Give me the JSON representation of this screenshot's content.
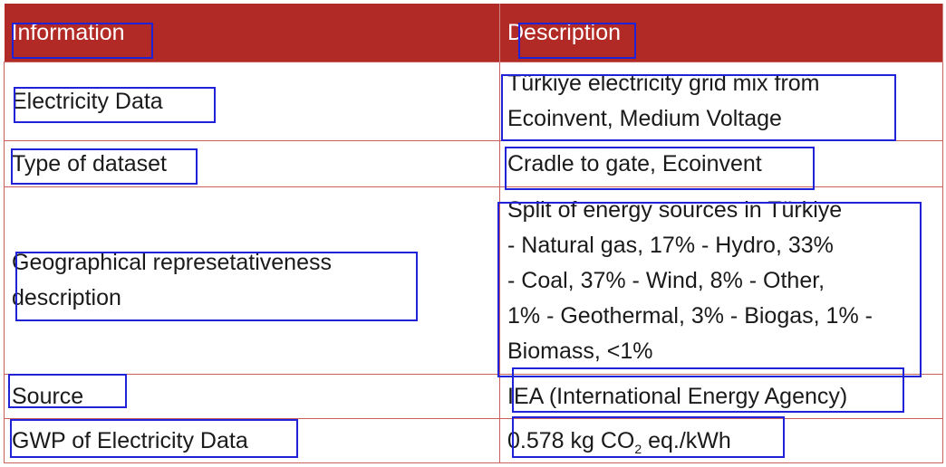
{
  "table": {
    "headers": [
      "Information",
      "Description"
    ],
    "rows": [
      {
        "information": "Electricity Data",
        "description": "Türkiye electricity grid mix from\nEcoinvent, Medium Voltage"
      },
      {
        "information": "Type of dataset",
        "description": "Cradle to gate, Ecoinvent"
      },
      {
        "information": "Geographical represetativeness\ndescription",
        "description": "Split of energy sources in Türkiye\n- Natural gas, 17% - Hydro, 33%\n- Coal, 37% - Wind, 8% - Other,\n1% - Geothermal, 3% - Biogas, 1% -\nBiomass, <1%"
      },
      {
        "information": "Source",
        "description": "IEA (International Energy Agency)"
      },
      {
        "information": "GWP of Electricity Data",
        "description_prefix": "0.578 kg CO",
        "description_sub": "2",
        "description_suffix": " eq./kWh"
      }
    ]
  },
  "colors": {
    "header_bg": "#b22a26",
    "header_text": "#ffffff",
    "border": "#c8605c",
    "annotation_box": "#1f22d6"
  }
}
